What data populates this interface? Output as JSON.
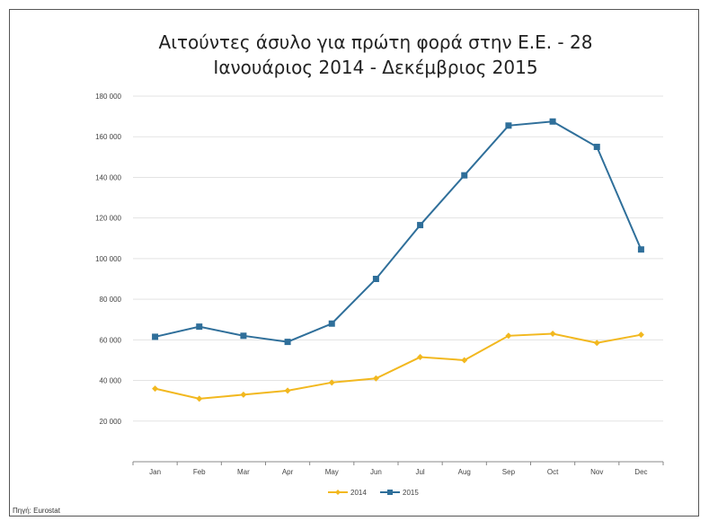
{
  "chart_data": {
    "type": "line",
    "title": [
      "Αιτούντες άσυλο για πρώτη φορά στην Ε.Ε. - 28",
      "Ιανουάριος 2014 - Δεκέμβριος 2015"
    ],
    "categories": [
      "Jan",
      "Feb",
      "Mar",
      "Apr",
      "May",
      "Jun",
      "Jul",
      "Aug",
      "Sep",
      "Oct",
      "Nov",
      "Dec"
    ],
    "yticks": [
      "180 000",
      "160 000",
      "140 000",
      "120 000",
      "100 000",
      "80 000",
      "60 000",
      "40 000",
      "20 000"
    ],
    "ylim": [
      0,
      180000
    ],
    "grid": true,
    "legend": "bottom",
    "series": [
      {
        "name": "2014",
        "color": "#f2b81f",
        "marker": "diamond",
        "values": [
          36000,
          31000,
          33000,
          35000,
          39000,
          41000,
          51500,
          50000,
          62000,
          63000,
          58500,
          62500
        ]
      },
      {
        "name": "2015",
        "color": "#2f6f9a",
        "marker": "square",
        "values": [
          61500,
          66500,
          62000,
          59000,
          68000,
          90000,
          116500,
          141000,
          165500,
          167500,
          155000,
          104500
        ]
      }
    ],
    "source": "Πηγή: Eurostat"
  }
}
